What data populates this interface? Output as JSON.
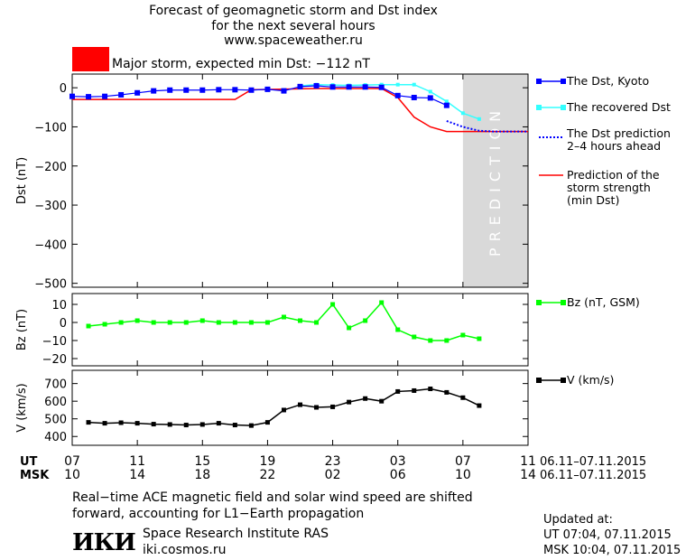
{
  "header": {
    "title_lines": [
      "Forecast of geomagnetic storm and Dst index",
      "for the next several hours",
      "www.spaceweather.ru"
    ],
    "storm_text": "Major storm, expected min Dst: −112 nT",
    "storm_color": "#ff0000"
  },
  "colors": {
    "dst": "#0000ff",
    "recovered": "#33ffff",
    "prediction_line": "#ff0000",
    "bz": "#00ff00",
    "v": "#000000",
    "prediction_zone": "#d9d9d9"
  },
  "legend": {
    "dst_kyoto": "The Dst, Kyoto",
    "recovered": "The recovered Dst",
    "prediction_lines": [
      "The Dst prediction",
      "2–4 hours ahead"
    ],
    "strength_lines": [
      "Prediction of the",
      "storm strength",
      "(min Dst)"
    ],
    "bz": "Bz (nT, GSM)",
    "v": "V (km/s)"
  },
  "prediction_label": "PREDICTION",
  "time_axis": {
    "ut_label": "UT",
    "msk_label": "MSK",
    "ut_ticks": [
      "07",
      "11",
      "15",
      "19",
      "23",
      "03",
      "07",
      "11"
    ],
    "msk_ticks": [
      "10",
      "14",
      "18",
      "22",
      "02",
      "06",
      "10",
      "14"
    ],
    "ut_range": "06.11–07.11.2015",
    "msk_range": "06.11–07.11.2015"
  },
  "footer": {
    "note_lines": [
      "Real−time ACE magnetic field and solar wind speed are shifted",
      "forward, accounting for L1−Earth propagation"
    ],
    "logo_text": "ИКИ",
    "institute": "Space Research Institute RAS",
    "site": "iki.cosmos.ru",
    "updated_label": "Updated at:",
    "updated_ut": "UT   07:04, 07.11.2015",
    "updated_msk": "MSK 10:04, 07.11.2015"
  },
  "chart_data": [
    {
      "type": "line",
      "ylabel": "Dst (nT)",
      "xlim": [
        0,
        28
      ],
      "ylim": [
        -510,
        35
      ],
      "yticks": [
        0,
        -100,
        -200,
        -300,
        -400,
        -500
      ],
      "prediction_zone_x": [
        24,
        28
      ],
      "series": [
        {
          "name": "The Dst, Kyoto",
          "x": [
            0,
            1,
            2,
            3,
            4,
            5,
            6,
            7,
            8,
            9,
            10,
            11,
            12,
            13,
            14,
            15,
            16,
            17,
            18,
            19,
            20,
            21,
            22,
            23
          ],
          "y": [
            -22,
            -23,
            -22,
            -18,
            -13,
            -8,
            -6,
            -6,
            -6,
            -5,
            -5,
            -6,
            -4,
            -8,
            3,
            5,
            2,
            2,
            2,
            1,
            -20,
            -25,
            -26,
            -45
          ]
        },
        {
          "name": "The recovered Dst",
          "x": [
            14,
            15,
            16,
            17,
            18,
            19,
            20,
            21,
            22,
            23,
            24,
            25
          ],
          "y": [
            5,
            8,
            7,
            6,
            7,
            8,
            8,
            8,
            -10,
            -35,
            -65,
            -80
          ]
        },
        {
          "name": "The Dst prediction 2–4 hours ahead",
          "x": [
            23,
            24,
            25,
            26,
            27,
            28
          ],
          "y": [
            -85,
            -100,
            -110,
            -112,
            -112,
            -112
          ]
        },
        {
          "name": "Prediction of the storm strength (min Dst)",
          "x": [
            0,
            10,
            11,
            15,
            19,
            20,
            21,
            22,
            23,
            24,
            25,
            26,
            27,
            28
          ],
          "y": [
            -30,
            -30,
            -5,
            -2,
            -2,
            -25,
            -75,
            -100,
            -112,
            -112,
            -112,
            -112,
            -112,
            -112
          ]
        }
      ]
    },
    {
      "type": "line",
      "ylabel": "Bz (nT)",
      "xlim": [
        0,
        28
      ],
      "ylim": [
        -24,
        16
      ],
      "yticks": [
        10,
        0,
        -10,
        -20
      ],
      "series": [
        {
          "name": "Bz (nT, GSM)",
          "x": [
            1,
            2,
            3,
            4,
            5,
            6,
            7,
            8,
            9,
            10,
            11,
            12,
            13,
            14,
            15,
            16,
            17,
            18,
            19,
            20,
            21,
            22,
            23,
            24,
            25
          ],
          "y": [
            -2,
            -1,
            0,
            1,
            0,
            0,
            0,
            1,
            0,
            0,
            0,
            0,
            3,
            1,
            0,
            10,
            -3,
            1,
            11,
            -4,
            -8,
            -10,
            -10,
            -7,
            -9
          ]
        }
      ]
    },
    {
      "type": "line",
      "ylabel": "V (km/s)",
      "xlim": [
        0,
        28
      ],
      "ylim": [
        350,
        775
      ],
      "yticks": [
        700,
        600,
        500,
        400
      ],
      "series": [
        {
          "name": "V (km/s)",
          "x": [
            1,
            2,
            3,
            4,
            5,
            6,
            7,
            8,
            9,
            10,
            11,
            12,
            13,
            14,
            15,
            16,
            17,
            18,
            19,
            20,
            21,
            22,
            23,
            24,
            25
          ],
          "y": [
            480,
            475,
            478,
            475,
            470,
            468,
            465,
            468,
            475,
            465,
            462,
            480,
            550,
            580,
            565,
            568,
            595,
            615,
            600,
            655,
            660,
            670,
            650,
            620,
            575
          ]
        }
      ]
    }
  ]
}
